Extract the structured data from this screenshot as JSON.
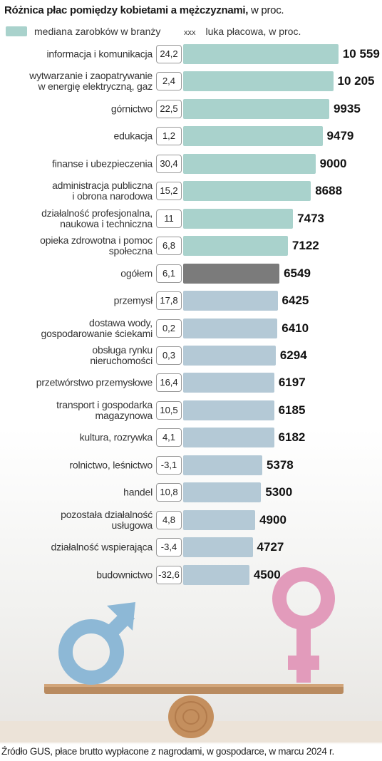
{
  "chart_data": {
    "type": "bar",
    "title": "Różnica płac pomiędzy kobietami a mężczyznami,",
    "subtitle": "w proc.",
    "legend_marker": "xxx",
    "categories": [
      "informacja i komunikacja",
      "wytwarzanie i zaopatrywanie\nw energię elektryczną, gaz",
      "górnictwo",
      "edukacja",
      "finanse i ubezpieczenia",
      "administracja publiczna\ni obrona narodowa",
      "działalność profesjonalna,\nnaukowa i techniczna",
      "opieka zdrowotna i pomoc\nspołeczna",
      "ogółem",
      "przemysł",
      "dostawa wody,\ngospodarowanie ściekami",
      "obsługa rynku\nnieruchomości",
      "przetwórstwo przemysłowe",
      "transport i gospodarka\nmagazynowa",
      "kultura, rozrywka",
      "rolnictwo, leśnictwo",
      "handel",
      "pozostała działalność\nusługowa",
      "działalność wspierająca",
      "budownictwo"
    ],
    "series": [
      {
        "name": "mediana zarobków w branży",
        "color": "#a9d2cc",
        "colors": [
          "#a9d2cc",
          "#a9d2cc",
          "#a9d2cc",
          "#a9d2cc",
          "#a9d2cc",
          "#a9d2cc",
          "#a9d2cc",
          "#a9d2cc",
          "#7b7b7b",
          "#b4c9d6",
          "#b4c9d6",
          "#b4c9d6",
          "#b4c9d6",
          "#b4c9d6",
          "#b4c9d6",
          "#b4c9d6",
          "#b4c9d6",
          "#b4c9d6",
          "#b4c9d6",
          "#b4c9d6"
        ],
        "values": [
          10559,
          10205,
          9935,
          9479,
          9000,
          8688,
          7473,
          7122,
          6549,
          6425,
          6410,
          6294,
          6197,
          6185,
          6182,
          5378,
          5300,
          4900,
          4727,
          4500
        ],
        "value_labels": [
          "10 559",
          "10 205",
          "9935",
          "9479",
          "9000",
          "8688",
          "7473",
          "7122",
          "6549",
          "6425",
          "6410",
          "6294",
          "6197",
          "6185",
          "6182",
          "5378",
          "5300",
          "4900",
          "4727",
          "4500"
        ]
      },
      {
        "name": "luka płacowa, w proc.",
        "values": [
          24.2,
          2.4,
          22.5,
          1.2,
          30.4,
          15.2,
          11,
          6.8,
          6.1,
          17.8,
          0.2,
          0.3,
          16.4,
          10.5,
          4.1,
          -3.1,
          10.8,
          4.8,
          -3.4,
          -32.6
        ],
        "value_labels": [
          "24,2",
          "2,4",
          "22,5",
          "1,2",
          "30,4",
          "15,2",
          "11",
          "6,8",
          "6,1",
          "17,8",
          "0,2",
          "0,3",
          "16,4",
          "10,5",
          "4,1",
          "-3,1",
          "10,8",
          "4,8",
          "-3,4",
          "-32,6"
        ]
      }
    ],
    "source": "Źródło GUS, płace brutto wypłacone z nagrodami, w gospodarce, w marcu 2024 r."
  }
}
